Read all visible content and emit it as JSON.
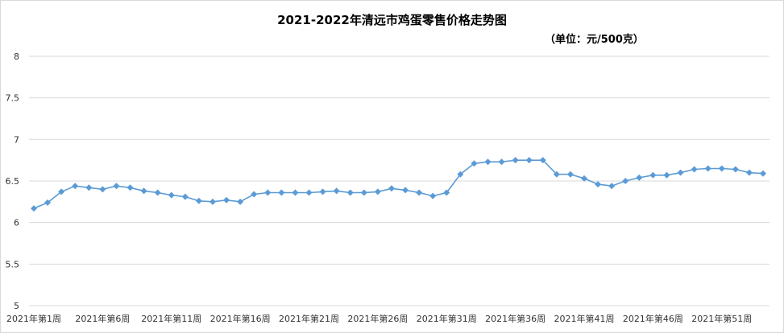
{
  "chart_data": {
    "type": "line",
    "title": "2021-2022年清远市鸡蛋零售价格走势图",
    "subtitle": "（单位：元/500克）",
    "ylim": [
      5,
      8
    ],
    "yticks": [
      "5",
      "5.5",
      "6",
      "6.5",
      "7",
      "7.5",
      "8"
    ],
    "grid": true,
    "x_tick_labels": [
      {
        "index": 0,
        "label": "2021年第1周"
      },
      {
        "index": 5,
        "label": "2021年第6周"
      },
      {
        "index": 10,
        "label": "2021年第11周"
      },
      {
        "index": 15,
        "label": "2021年第16周"
      },
      {
        "index": 20,
        "label": "2021年第21周"
      },
      {
        "index": 25,
        "label": "2021年第26周"
      },
      {
        "index": 30,
        "label": "2021年第31周"
      },
      {
        "index": 35,
        "label": "2021年第36周"
      },
      {
        "index": 40,
        "label": "2021年第41周"
      },
      {
        "index": 45,
        "label": "2021年第46周"
      },
      {
        "index": 50,
        "label": "2021年第51周"
      }
    ],
    "series": [
      {
        "color": "#5b9bd5",
        "marker": "diamond",
        "values": [
          6.17,
          6.24,
          6.37,
          6.44,
          6.42,
          6.4,
          6.44,
          6.42,
          6.38,
          6.36,
          6.33,
          6.31,
          6.26,
          6.25,
          6.27,
          6.25,
          6.34,
          6.36,
          6.36,
          6.36,
          6.36,
          6.37,
          6.38,
          6.36,
          6.36,
          6.37,
          6.41,
          6.39,
          6.36,
          6.32,
          6.36,
          6.58,
          6.71,
          6.73,
          6.73,
          6.75,
          6.75,
          6.75,
          6.58,
          6.58,
          6.53,
          6.46,
          6.44,
          6.5,
          6.54,
          6.57,
          6.57,
          6.6,
          6.64,
          6.65,
          6.65,
          6.64,
          6.6,
          6.59
        ]
      }
    ]
  }
}
